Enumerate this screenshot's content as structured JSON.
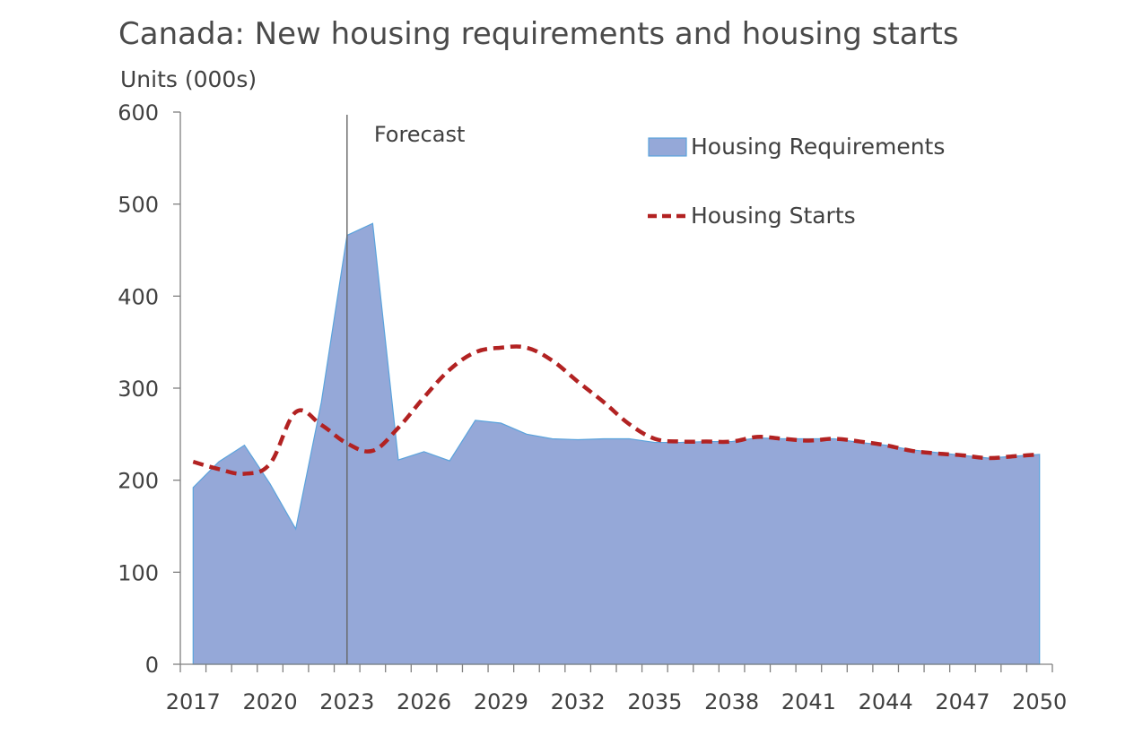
{
  "chart_data": {
    "type": "area",
    "title": "Canada: New housing requirements and housing starts",
    "ylabel": "Units (000s)",
    "xlabel": "",
    "x_ticks": [
      "2017",
      "2020",
      "2023",
      "2026",
      "2029",
      "2032",
      "2035",
      "2038",
      "2041",
      "2044",
      "2047",
      "2050"
    ],
    "y_ticks": [
      "0",
      "100",
      "200",
      "300",
      "400",
      "500",
      "600"
    ],
    "xlim": [
      2016.5,
      2050.5
    ],
    "ylim": [
      0,
      600
    ],
    "grid": false,
    "legend_position": "top-right",
    "annotations": [
      {
        "text": "Forecast",
        "x": 2023
      }
    ],
    "x": [
      2017,
      2018,
      2019,
      2020,
      2021,
      2022,
      2023,
      2024,
      2025,
      2026,
      2027,
      2028,
      2029,
      2030,
      2031,
      2032,
      2033,
      2034,
      2035,
      2036,
      2037,
      2038,
      2039,
      2040,
      2041,
      2042,
      2043,
      2044,
      2045,
      2046,
      2047,
      2048,
      2049,
      2050
    ],
    "series": [
      {
        "name": "Housing Requirements",
        "kind": "area",
        "color": "#95A8D8",
        "edge_color": "#5BA3DC",
        "values": [
          192,
          220,
          238,
          196,
          147,
          285,
          466,
          479,
          222,
          231,
          221,
          265,
          262,
          250,
          245,
          244,
          245,
          245,
          241,
          241,
          242,
          242,
          246,
          245,
          245,
          245,
          241,
          238,
          233,
          230,
          227,
          224,
          226,
          228
        ]
      },
      {
        "name": "Housing Starts",
        "kind": "line",
        "color": "#B22222",
        "dash": "dashed",
        "values": [
          220,
          212,
          207,
          218,
          274,
          260,
          240,
          232,
          257,
          290,
          320,
          339,
          344,
          344,
          330,
          307,
          285,
          261,
          245,
          242,
          242,
          242,
          247,
          245,
          243,
          245,
          242,
          238,
          232,
          229,
          227,
          224,
          226,
          228
        ]
      }
    ]
  }
}
